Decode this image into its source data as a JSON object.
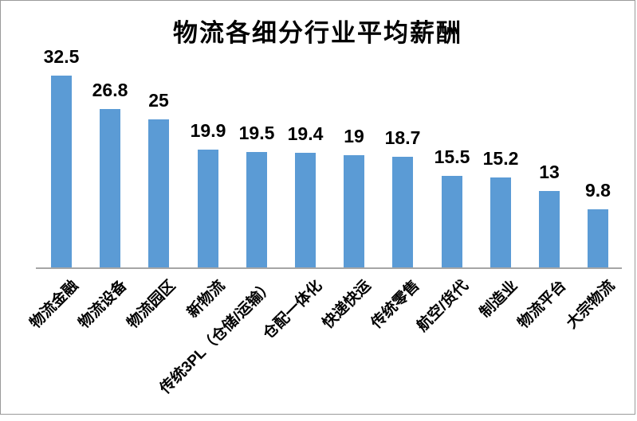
{
  "chart_data": {
    "type": "bar",
    "title": "物流各细分行业平均薪酬",
    "categories": [
      "物流金融",
      "物流设备",
      "物流园区",
      "新物流",
      "传统3PL（仓储/运输）",
      "仓配一体化",
      "快递快运",
      "传统零售",
      "航空/货代",
      "制造业",
      "物流平台",
      "大宗物流"
    ],
    "values": [
      32.5,
      26.8,
      25,
      19.9,
      19.5,
      19.4,
      19,
      18.7,
      15.5,
      15.2,
      13,
      9.8
    ],
    "value_labels": [
      "32.5",
      "26.8",
      "25",
      "19.9",
      "19.5",
      "19.4",
      "19",
      "18.7",
      "15.5",
      "15.2",
      "13",
      "9.8"
    ],
    "xlabel": "",
    "ylabel": "",
    "ylim": [
      0,
      35
    ],
    "grid": "off",
    "legend": "none",
    "data_labels": "above-bars",
    "category_label_rotation_deg": -45,
    "colors": {
      "bar_fill": "#5B9BD5",
      "axis_line": "#A6A6A6",
      "frame_border": "#9A9A9A",
      "text": "#000000",
      "background": "#FFFFFF"
    }
  }
}
